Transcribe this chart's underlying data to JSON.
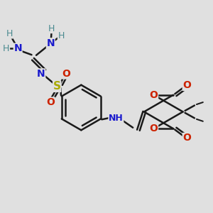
{
  "background_color": "#e0e0e0",
  "bond_color": "#1a1a1a",
  "bond_width": 1.8,
  "figsize": [
    3.0,
    3.0
  ],
  "dpi": 100,
  "colors": {
    "N": "#1a1acd",
    "O": "#cc2200",
    "S": "#aaaa00",
    "H": "#4a8a90",
    "C": "#1a1a1a"
  }
}
